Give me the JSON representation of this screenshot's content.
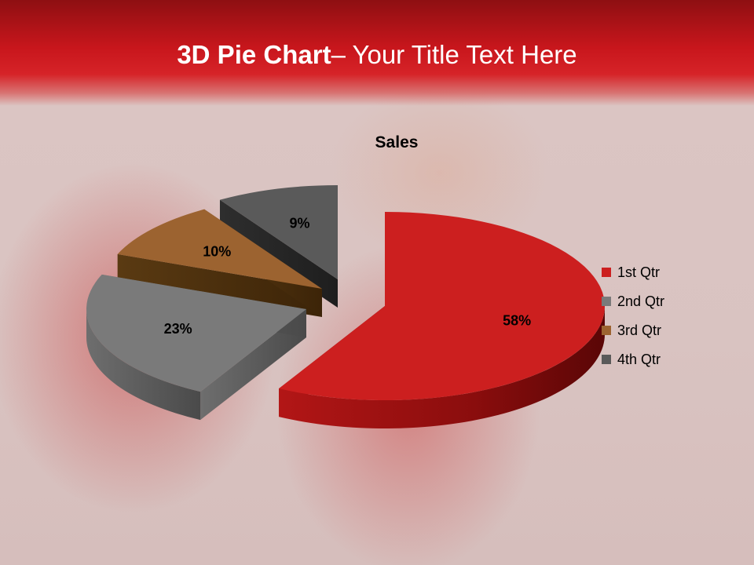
{
  "slide": {
    "title_bold": "3D Pie Chart",
    "title_rest": "– Your Title Text Here"
  },
  "colors": {
    "header": "#c8161c",
    "q1": "#cc1f1f",
    "q2": "#7a7a7a",
    "q3": "#9c6330",
    "q4": "#5a5a5a"
  },
  "chart_data": {
    "type": "pie",
    "title": "Sales",
    "categories": [
      "1st Qtr",
      "2nd Qtr",
      "3rd Qtr",
      "4th Qtr"
    ],
    "values": [
      58,
      23,
      10,
      9
    ],
    "labels": [
      "58%",
      "23%",
      "10%",
      "9%"
    ],
    "colors": [
      "#cc1f1f",
      "#7a7a7a",
      "#9c6330",
      "#5a5a5a"
    ],
    "exploded": true,
    "three_d": true,
    "legend_position": "right"
  }
}
